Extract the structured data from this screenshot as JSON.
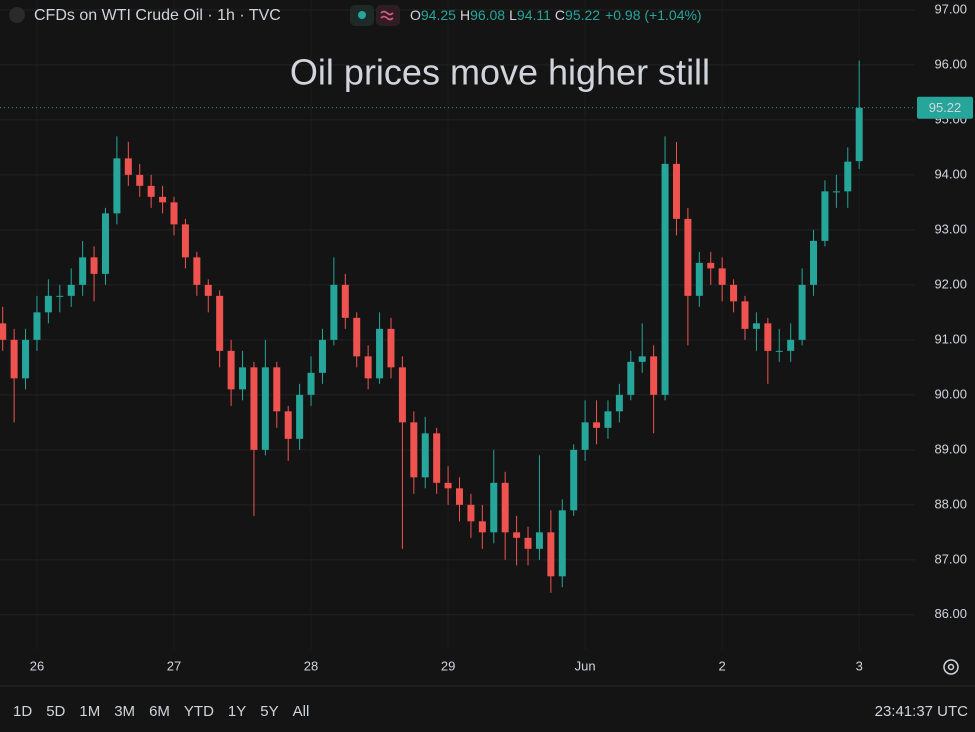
{
  "header": {
    "o": "O",
    "h": "H",
    "l": "L",
    "c": "C",
    "change": "+0.98 (+1.04%)"
  },
  "chart_data": {
    "type": "candlestick",
    "title": "CFDs on WTI Crude Oil · 1h · TVC",
    "annotation": "Oil prices move higher still",
    "categories": [
      null,
      null,
      null,
      "26",
      null,
      null,
      null,
      null,
      null,
      null,
      null,
      null,
      null,
      null,
      null,
      "27",
      null,
      null,
      null,
      null,
      null,
      null,
      null,
      null,
      null,
      null,
      null,
      "28",
      null,
      null,
      null,
      null,
      null,
      null,
      null,
      null,
      null,
      null,
      null,
      "29",
      null,
      null,
      null,
      null,
      null,
      null,
      null,
      null,
      null,
      null,
      null,
      "Jun",
      null,
      null,
      null,
      null,
      null,
      null,
      null,
      null,
      null,
      null,
      null,
      "2",
      null,
      null,
      null,
      null,
      null,
      null,
      null,
      null,
      null,
      null,
      null,
      "3"
    ],
    "open": [
      91.3,
      91.0,
      90.3,
      91.0,
      91.5,
      91.8,
      91.8,
      92.0,
      92.5,
      92.2,
      93.3,
      94.3,
      94.0,
      93.8,
      93.6,
      93.5,
      93.1,
      92.5,
      92.0,
      91.8,
      90.8,
      90.1,
      90.5,
      89.0,
      90.5,
      89.7,
      89.2,
      90.0,
      90.4,
      91.0,
      92.0,
      91.4,
      90.7,
      90.3,
      91.2,
      90.5,
      89.5,
      88.5,
      89.3,
      88.4,
      88.3,
      88.0,
      87.7,
      87.5,
      88.4,
      87.5,
      87.4,
      87.2,
      87.5,
      86.7,
      87.9,
      89.0,
      89.5,
      89.4,
      89.7,
      90.0,
      90.6,
      90.7,
      90.0,
      94.2,
      93.2,
      91.8,
      92.4,
      92.3,
      92.0,
      91.7,
      91.2,
      91.3,
      90.8,
      90.8,
      91.0,
      92.0,
      92.8,
      93.7,
      93.7,
      94.25
    ],
    "high": [
      91.6,
      91.2,
      91.2,
      91.8,
      92.1,
      92.0,
      92.3,
      92.8,
      92.7,
      93.4,
      94.7,
      94.6,
      94.2,
      94.0,
      93.8,
      93.6,
      93.2,
      92.6,
      92.1,
      91.9,
      91.0,
      90.8,
      90.6,
      91.0,
      90.6,
      89.8,
      90.2,
      90.7,
      91.2,
      92.5,
      92.2,
      91.5,
      90.9,
      91.5,
      91.4,
      90.7,
      89.7,
      89.6,
      89.4,
      88.7,
      88.5,
      88.2,
      88.0,
      89.0,
      88.6,
      87.8,
      87.6,
      88.9,
      87.9,
      88.1,
      89.1,
      89.9,
      89.9,
      89.9,
      90.2,
      90.8,
      91.3,
      90.9,
      94.7,
      94.6,
      93.4,
      92.6,
      92.6,
      92.5,
      92.1,
      91.8,
      91.5,
      91.4,
      91.2,
      91.3,
      92.3,
      93.0,
      93.9,
      94.0,
      94.5,
      96.08
    ],
    "low": [
      90.8,
      89.5,
      90.1,
      90.8,
      91.3,
      91.5,
      91.6,
      91.8,
      91.7,
      92.0,
      93.1,
      93.8,
      93.6,
      93.4,
      93.3,
      92.9,
      92.3,
      91.8,
      91.5,
      90.5,
      89.8,
      89.9,
      87.8,
      88.9,
      89.4,
      88.8,
      89.0,
      89.8,
      90.2,
      90.9,
      91.2,
      90.5,
      90.1,
      90.2,
      90.3,
      87.2,
      88.2,
      88.3,
      88.2,
      88.0,
      87.7,
      87.4,
      87.2,
      87.3,
      87.0,
      86.9,
      86.9,
      87.0,
      86.4,
      86.5,
      87.8,
      88.8,
      89.1,
      89.2,
      89.5,
      89.9,
      90.4,
      89.3,
      89.9,
      92.9,
      90.9,
      91.6,
      92.0,
      91.7,
      91.5,
      91.0,
      90.8,
      90.2,
      90.6,
      90.6,
      90.9,
      91.8,
      92.7,
      93.4,
      93.4,
      94.11
    ],
    "close": [
      91.0,
      90.3,
      91.0,
      91.5,
      91.8,
      91.8,
      92.0,
      92.5,
      92.2,
      93.3,
      94.3,
      94.0,
      93.8,
      93.6,
      93.5,
      93.1,
      92.5,
      92.0,
      91.8,
      90.8,
      90.1,
      90.5,
      89.0,
      90.5,
      89.7,
      89.2,
      90.0,
      90.4,
      91.0,
      92.0,
      91.4,
      90.7,
      90.3,
      91.2,
      90.5,
      89.5,
      88.5,
      89.3,
      88.4,
      88.3,
      88.0,
      87.7,
      87.5,
      88.4,
      87.5,
      87.4,
      87.2,
      87.5,
      86.7,
      87.9,
      89.0,
      89.5,
      89.4,
      89.7,
      90.0,
      90.6,
      90.7,
      90.0,
      94.2,
      93.2,
      91.8,
      92.4,
      92.3,
      92.0,
      91.7,
      91.2,
      91.3,
      90.8,
      90.8,
      91.0,
      92.0,
      92.8,
      93.7,
      93.7,
      94.24,
      95.22
    ],
    "up_color": "#26a69a",
    "down_color": "#ef5350",
    "annotation_color": "#e3171e",
    "ylim": [
      85.36,
      97.18
    ],
    "yticks": [
      {
        "value": 86,
        "label": "86.00"
      },
      {
        "value": 87,
        "label": "87.00"
      },
      {
        "value": 88,
        "label": "88.00"
      },
      {
        "value": 89,
        "label": "89.00"
      },
      {
        "value": 90,
        "label": "90.00"
      },
      {
        "value": 91,
        "label": "91.00"
      },
      {
        "value": 92,
        "label": "92.00"
      },
      {
        "value": 93,
        "label": "93.00"
      },
      {
        "value": 94,
        "label": "94.00"
      },
      {
        "value": 95,
        "label": "95.00"
      },
      {
        "value": 96,
        "label": "96.00"
      },
      {
        "value": 97,
        "label": "97.00"
      }
    ],
    "grid": true
  },
  "toolbar": {
    "ranges": [
      "1D",
      "5D",
      "1M",
      "3M",
      "6M",
      "YTD",
      "1Y",
      "5Y",
      "All"
    ],
    "clock": "23:41:37 UTC"
  }
}
